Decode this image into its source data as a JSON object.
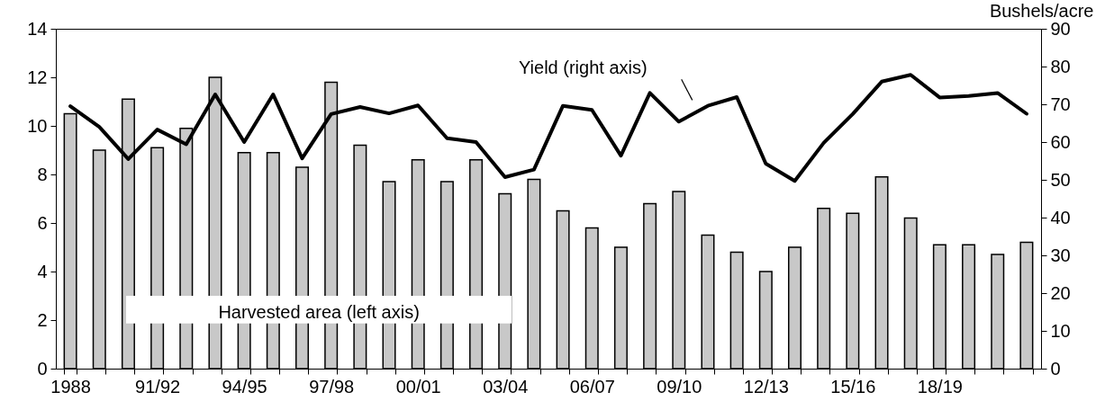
{
  "chart_data": {
    "type": "bar",
    "y2label": "Bushels/acre",
    "categories": [
      "1988",
      null,
      null,
      "91/92",
      null,
      null,
      "94/95",
      null,
      null,
      "97/98",
      null,
      null,
      "00/01",
      null,
      null,
      "03/04",
      null,
      null,
      "06/07",
      null,
      null,
      "09/10",
      null,
      null,
      "12/13",
      null,
      null,
      "15/16",
      null,
      null,
      "18/19",
      null,
      null,
      null
    ],
    "series": [
      {
        "name": "Harvested area (left axis)",
        "color": "#c8c8c8",
        "values": [
          10.5,
          9.0,
          11.1,
          9.1,
          9.9,
          12.0,
          8.9,
          8.9,
          8.3,
          11.8,
          9.2,
          7.7,
          8.6,
          7.7,
          8.6,
          7.2,
          7.8,
          6.5,
          5.8,
          5.0,
          6.8,
          7.3,
          5.5,
          4.8,
          4.0,
          5.0,
          6.6,
          6.4,
          7.9,
          6.2,
          5.1,
          5.1,
          4.7,
          5.2
        ]
      },
      {
        "name": "Yield (right axis)",
        "type": "line",
        "axis": "y2",
        "color": "#000000",
        "values": [
          69.5,
          64.0,
          55.5,
          63.3,
          59.4,
          72.6,
          60.0,
          72.6,
          55.7,
          67.4,
          69.3,
          67.6,
          69.7,
          61.0,
          60.0,
          50.7,
          52.7,
          69.6,
          68.5,
          56.4,
          73.0,
          65.4,
          69.6,
          71.9,
          54.3,
          49.7,
          59.8,
          67.4,
          76.0,
          77.8,
          71.8,
          72.2,
          73.0,
          67.5
        ]
      }
    ],
    "ylim": [
      0,
      14
    ],
    "yticks": [
      0,
      2,
      4,
      6,
      8,
      10,
      12,
      14
    ],
    "y2lim": [
      0,
      90
    ],
    "y2ticks": [
      0,
      10,
      20,
      30,
      40,
      50,
      60,
      70,
      80,
      90
    ]
  }
}
